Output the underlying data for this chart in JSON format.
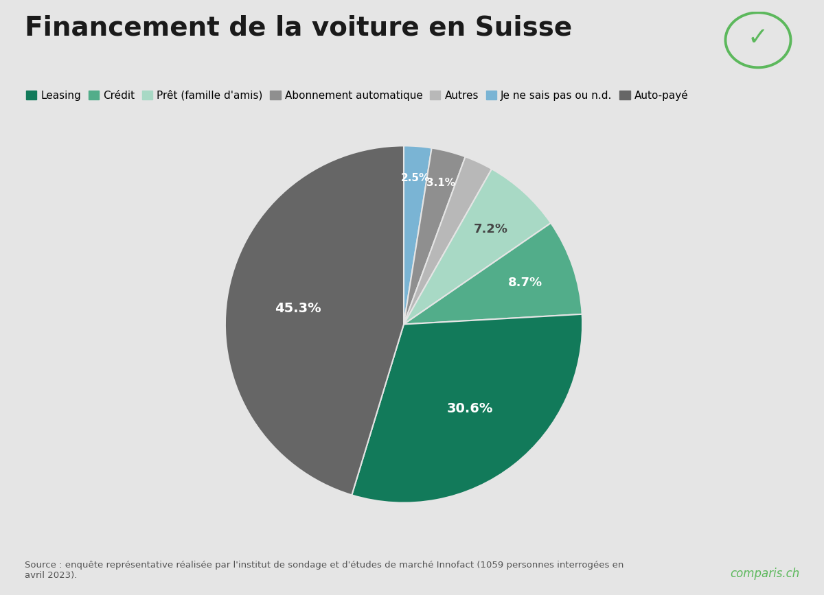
{
  "title": "Financement de la voiture en Suisse",
  "background_color": "#e5e5e5",
  "pie_slices": [
    {
      "label": "Je ne sais pas ou n.d.",
      "value": 2.5,
      "color": "#7ab4d4",
      "pct": "2.5%",
      "text_color": "#ffffff"
    },
    {
      "label": "Abonnement automatique",
      "value": 3.1,
      "color": "#8f8f8f",
      "pct": "3.1%",
      "text_color": "#ffffff"
    },
    {
      "label": "Autres",
      "value": 2.6,
      "color": "#b8b8b8",
      "pct": "",
      "text_color": "#ffffff"
    },
    {
      "label": "Prêt (famille d'amis)",
      "value": 7.2,
      "color": "#a8d9c5",
      "pct": "7.2%",
      "text_color": "#444444"
    },
    {
      "label": "Crédit",
      "value": 8.7,
      "color": "#52ad8a",
      "pct": "8.7%",
      "text_color": "#ffffff"
    },
    {
      "label": "Leasing",
      "value": 30.6,
      "color": "#127a5a",
      "pct": "30.6%",
      "text_color": "#ffffff"
    },
    {
      "label": "Auto-payé",
      "value": 45.3,
      "color": "#666666",
      "pct": "45.3%",
      "text_color": "#ffffff"
    }
  ],
  "legend_items": [
    {
      "label": "Leasing",
      "color": "#127a5a"
    },
    {
      "label": "Crédit",
      "color": "#52ad8a"
    },
    {
      "label": "Prêt (famille d'amis)",
      "color": "#a8d9c5"
    },
    {
      "label": "Abonnement automatique",
      "color": "#8f8f8f"
    },
    {
      "label": "Autres",
      "color": "#b8b8b8"
    },
    {
      "label": "Je ne sais pas ou n.d.",
      "color": "#7ab4d4"
    },
    {
      "label": "Auto-payé",
      "color": "#666666"
    }
  ],
  "title_fontsize": 28,
  "legend_fontsize": 11,
  "source_text": "Source : enquête représentative réalisée par l'institut de sondage et d'études de marché Innofact (1059 personnes interrogées en\navril 2023).",
  "source_fontsize": 9.5,
  "comparis_text": "comparis.ch",
  "comparis_color": "#5cb85c"
}
